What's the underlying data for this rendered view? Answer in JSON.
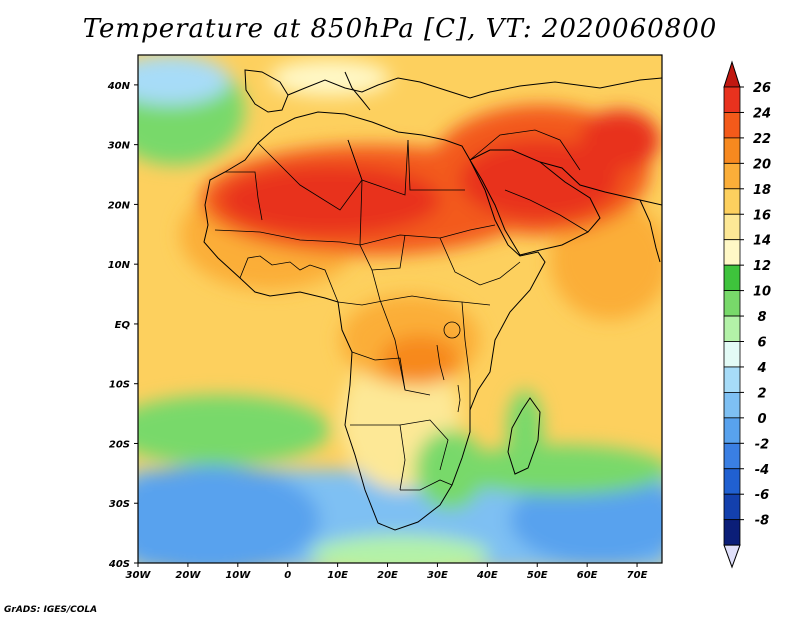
{
  "title": "Temperature at 850hPa [C], VT: 2020060800",
  "credit": "GrADS: IGES/COLA",
  "map": {
    "lon_range": [
      -30,
      75
    ],
    "lat_range": [
      -40,
      45
    ],
    "lon_ticks": [
      "30W",
      "20W",
      "10W",
      "0",
      "10E",
      "20E",
      "30E",
      "40E",
      "50E",
      "60E",
      "70E"
    ],
    "lat_ticks": [
      "40N",
      "30N",
      "20N",
      "10N",
      "EQ",
      "10S",
      "20S",
      "30S",
      "40S"
    ],
    "variable": "temperature at 850 hPa",
    "units": "C"
  },
  "colorbar": {
    "labels": [
      "26",
      "24",
      "22",
      "20",
      "18",
      "16",
      "14",
      "12",
      "10",
      "8",
      "6",
      "4",
      "2",
      "0",
      "-2",
      "-4",
      "-6",
      "-8"
    ],
    "colors": [
      "#e8321e",
      "#f35a1a",
      "#f7891f",
      "#fbae39",
      "#fdd05e",
      "#fde896",
      "#fff8c6",
      "#3ec33c",
      "#78d96a",
      "#b3f2a8",
      "#e3fbf6",
      "#a7dcf8",
      "#7ec0f3",
      "#58a2ee",
      "#3a7fe3",
      "#2060d1",
      "#1340ad",
      "#0b1e78"
    ],
    "over_color": "#c01810",
    "under_color": "#e0e0fa"
  }
}
